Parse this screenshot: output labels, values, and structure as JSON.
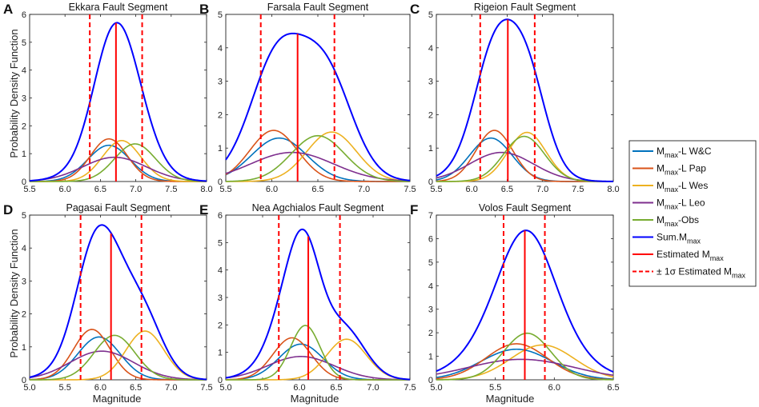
{
  "figure": {
    "ylabel_top": "Probability Density Function",
    "ylabel_bottom": "Probability Density Function",
    "xlabel": "Magnitude"
  },
  "legend": {
    "position": "right",
    "items": [
      {
        "main": "M",
        "sub": "max",
        "rest": "-L W&C",
        "color": "#0072BD",
        "style": "solid"
      },
      {
        "main": "M",
        "sub": "max",
        "rest": "-L Pap",
        "color": "#D95319",
        "style": "solid"
      },
      {
        "main": "M",
        "sub": "max",
        "rest": "-L Wes",
        "color": "#EDB120",
        "style": "solid"
      },
      {
        "main": "M",
        "sub": "max",
        "rest": "-L Leo",
        "color": "#7E2F8E",
        "style": "solid"
      },
      {
        "main": "M",
        "sub": "max",
        "rest": "-Obs",
        "color": "#77AC30",
        "style": "solid"
      },
      {
        "main": "Sum.M",
        "sub": "max",
        "rest": "",
        "color": "#0000FF",
        "style": "solid"
      },
      {
        "main": "Estimated M",
        "sub": "max",
        "rest": "",
        "color": "#FF0000",
        "style": "solid"
      },
      {
        "main": "± 1σ Estimated M",
        "sub": "max",
        "rest": "",
        "color": "#FF0000",
        "style": "dashed"
      }
    ]
  },
  "chart_data": [
    {
      "type": "line",
      "letter": "A",
      "title": "Ekkara Fault Segment",
      "xlim": [
        5.5,
        8.0
      ],
      "ylim": [
        0,
        6
      ],
      "xticks": [
        "5.5",
        "6.0",
        "6.5",
        "7.0",
        "7.5",
        "8.0"
      ],
      "yticks": [
        "0",
        "1",
        "2",
        "3",
        "4",
        "5",
        "6"
      ],
      "estimated_mmax": 6.72,
      "sigma_bounds": [
        6.35,
        7.09
      ],
      "sum_peak": 5.7,
      "series": [
        {
          "name": "Mmax-L W&C",
          "mean": 6.62,
          "sd": 0.3,
          "peak": 1.3
        },
        {
          "name": "Mmax-L Pap",
          "mean": 6.62,
          "sd": 0.26,
          "peak": 1.53
        },
        {
          "name": "Mmax-L Wes",
          "mean": 6.8,
          "sd": 0.27,
          "peak": 1.47
        },
        {
          "name": "Mmax-L Leo",
          "mean": 6.7,
          "sd": 0.45,
          "peak": 0.87
        },
        {
          "name": "Mmax-Obs",
          "mean": 6.99,
          "sd": 0.29,
          "peak": 1.35
        }
      ]
    },
    {
      "type": "line",
      "letter": "B",
      "title": "Farsala Fault Segment",
      "xlim": [
        5.5,
        7.5
      ],
      "ylim": [
        0,
        5
      ],
      "xticks": [
        "5.5",
        "6.0",
        "6.5",
        "7.0",
        "7.5"
      ],
      "yticks": [
        "0",
        "1",
        "2",
        "3",
        "4",
        "5"
      ],
      "estimated_mmax": 6.28,
      "sigma_bounds": [
        5.88,
        6.68
      ],
      "sum_peak": 4.43,
      "series": [
        {
          "name": "Mmax-L W&C",
          "mean": 6.08,
          "sd": 0.3,
          "peak": 1.3
        },
        {
          "name": "Mmax-L Pap",
          "mean": 6.02,
          "sd": 0.26,
          "peak": 1.53
        },
        {
          "name": "Mmax-L Wes",
          "mean": 6.65,
          "sd": 0.27,
          "peak": 1.48
        },
        {
          "name": "Mmax-L Leo",
          "mean": 6.22,
          "sd": 0.45,
          "peak": 0.87
        },
        {
          "name": "Mmax-Obs",
          "mean": 6.5,
          "sd": 0.29,
          "peak": 1.37
        }
      ]
    },
    {
      "type": "line",
      "letter": "C",
      "title": "Rigeion Fault Segment",
      "xlim": [
        5.5,
        8.0
      ],
      "ylim": [
        0,
        5
      ],
      "xticks": [
        "5.5",
        "6.0",
        "6.5",
        "7.0",
        "7.5",
        "8.0"
      ],
      "yticks": [
        "0",
        "1",
        "2",
        "3",
        "4",
        "5"
      ],
      "estimated_mmax": 6.51,
      "sigma_bounds": [
        6.12,
        6.89
      ],
      "sum_peak": 4.85,
      "series": [
        {
          "name": "Mmax-L W&C",
          "mean": 6.27,
          "sd": 0.3,
          "peak": 1.3
        },
        {
          "name": "Mmax-L Pap",
          "mean": 6.32,
          "sd": 0.26,
          "peak": 1.53
        },
        {
          "name": "Mmax-L Wes",
          "mean": 6.78,
          "sd": 0.27,
          "peak": 1.47
        },
        {
          "name": "Mmax-L Leo",
          "mean": 6.42,
          "sd": 0.45,
          "peak": 0.87
        },
        {
          "name": "Mmax-Obs",
          "mean": 6.74,
          "sd": 0.29,
          "peak": 1.35
        }
      ]
    },
    {
      "type": "line",
      "letter": "D",
      "title": "Pagasai Fault Segment",
      "xlim": [
        5.0,
        7.5
      ],
      "ylim": [
        0,
        5
      ],
      "xticks": [
        "5.0",
        "5.5",
        "6.0",
        "6.5",
        "7.0",
        "7.5"
      ],
      "yticks": [
        "0",
        "1",
        "2",
        "3",
        "4",
        "5"
      ],
      "estimated_mmax": 6.15,
      "sigma_bounds": [
        5.72,
        6.58
      ],
      "sum_peak": 4.7,
      "series": [
        {
          "name": "Mmax-L W&C",
          "mean": 5.98,
          "sd": 0.3,
          "peak": 1.3
        },
        {
          "name": "Mmax-L Pap",
          "mean": 5.88,
          "sd": 0.26,
          "peak": 1.53
        },
        {
          "name": "Mmax-L Wes",
          "mean": 6.63,
          "sd": 0.27,
          "peak": 1.48
        },
        {
          "name": "Mmax-L Leo",
          "mean": 6.02,
          "sd": 0.45,
          "peak": 0.87
        },
        {
          "name": "Mmax-Obs",
          "mean": 6.2,
          "sd": 0.29,
          "peak": 1.35
        }
      ]
    },
    {
      "type": "line",
      "letter": "E",
      "title": "Nea Agchialos Fault Segment",
      "xlim": [
        5.0,
        7.5
      ],
      "ylim": [
        0,
        6
      ],
      "xticks": [
        "5.0",
        "5.5",
        "6.0",
        "6.5",
        "7.0",
        "7.5"
      ],
      "yticks": [
        "0",
        "1",
        "2",
        "3",
        "4",
        "5",
        "6"
      ],
      "estimated_mmax": 6.12,
      "sigma_bounds": [
        5.72,
        6.55
      ],
      "sum_peak": 5.48,
      "series": [
        {
          "name": "Mmax-L W&C",
          "mean": 6.02,
          "sd": 0.3,
          "peak": 1.3
        },
        {
          "name": "Mmax-L Pap",
          "mean": 5.9,
          "sd": 0.26,
          "peak": 1.53
        },
        {
          "name": "Mmax-L Wes",
          "mean": 6.64,
          "sd": 0.27,
          "peak": 1.48
        },
        {
          "name": "Mmax-L Leo",
          "mean": 6.02,
          "sd": 0.45,
          "peak": 0.85
        },
        {
          "name": "Mmax-Obs",
          "mean": 6.08,
          "sd": 0.2,
          "peak": 1.98
        }
      ]
    },
    {
      "type": "line",
      "letter": "F",
      "title": "Volos Fault Segment",
      "xlim": [
        5.0,
        6.5
      ],
      "ylim": [
        0,
        7
      ],
      "xticks": [
        "5.0",
        "5.5",
        "6.0",
        "6.5"
      ],
      "yticks": [
        "0",
        "1",
        "2",
        "3",
        "4",
        "5",
        "6",
        "7"
      ],
      "estimated_mmax": 5.75,
      "sigma_bounds": [
        5.57,
        5.92
      ],
      "sum_peak": 6.35,
      "series": [
        {
          "name": "Mmax-L W&C",
          "mean": 5.68,
          "sd": 0.3,
          "peak": 1.3
        },
        {
          "name": "Mmax-L Pap",
          "mean": 5.68,
          "sd": 0.26,
          "peak": 1.53
        },
        {
          "name": "Mmax-L Wes",
          "mean": 5.9,
          "sd": 0.27,
          "peak": 1.48
        },
        {
          "name": "Mmax-L Leo",
          "mean": 5.72,
          "sd": 0.45,
          "peak": 0.87
        },
        {
          "name": "Mmax-Obs",
          "mean": 5.77,
          "sd": 0.2,
          "peak": 1.98
        }
      ]
    }
  ]
}
